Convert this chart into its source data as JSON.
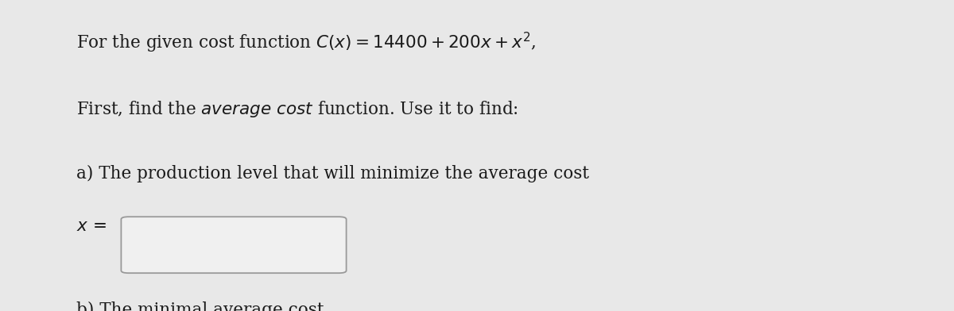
{
  "background_color": "#e8e8e8",
  "box_color": "#f0f0f0",
  "box_border": "#999999",
  "text_color": "#1a1a1a",
  "font_size_main": 15.5,
  "line1_math": "For the given cost function $C(x) = 14400 + 200x + x^2$,",
  "line2a": "First, find the ",
  "line2b": "average cost",
  "line2c": " function. Use it to find:",
  "line3": "a) The production level that will minimize the average cost",
  "label_x": "$x$ =",
  "line4": "b) The minimal average cost",
  "label_dollar": "$"
}
